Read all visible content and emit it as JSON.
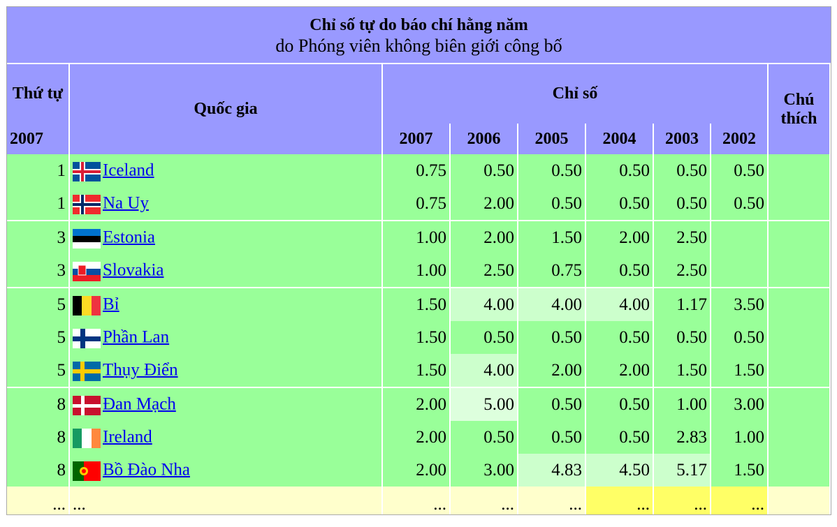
{
  "title": "Chỉ số tự do báo chí hằng năm",
  "subtitle": "do Phóng viên không biên giới công bố",
  "header": {
    "rank": "Thứ tự",
    "rank_year": "2007",
    "country": "Quốc gia",
    "index": "Chỉ số",
    "note": "Chú thích",
    "years": [
      "2007",
      "2006",
      "2005",
      "2004",
      "2003",
      "2002"
    ]
  },
  "rows": [
    {
      "rank": "1",
      "country": "Iceland",
      "scores": [
        "0.75",
        "0.50",
        "0.50",
        "0.50",
        "0.50",
        "0.50"
      ]
    },
    {
      "rank": "1",
      "country": "Na Uy",
      "scores": [
        "0.75",
        "2.00",
        "0.50",
        "0.50",
        "0.50",
        "0.50"
      ]
    },
    {
      "rank": "3",
      "country": "Estonia",
      "scores": [
        "1.00",
        "2.00",
        "1.50",
        "2.00",
        "2.50",
        ""
      ]
    },
    {
      "rank": "3",
      "country": "Slovakia",
      "scores": [
        "1.00",
        "2.50",
        "0.75",
        "0.50",
        "2.50",
        ""
      ]
    },
    {
      "rank": "5",
      "country": "Bỉ",
      "scores": [
        "1.50",
        "4.00",
        "4.00",
        "4.00",
        "1.17",
        "3.50"
      ]
    },
    {
      "rank": "5",
      "country": "Phần Lan",
      "scores": [
        "1.50",
        "0.50",
        "0.50",
        "0.50",
        "0.50",
        "0.50"
      ]
    },
    {
      "rank": "5",
      "country": "Thụy Điển",
      "scores": [
        "1.50",
        "4.00",
        "2.00",
        "2.00",
        "1.50",
        "1.50"
      ]
    },
    {
      "rank": "8",
      "country": "Đan Mạch",
      "scores": [
        "2.00",
        "5.00",
        "0.50",
        "0.50",
        "1.00",
        "3.00"
      ]
    },
    {
      "rank": "8",
      "country": "Ireland",
      "scores": [
        "2.00",
        "0.50",
        "0.50",
        "0.50",
        "2.83",
        "1.00"
      ]
    },
    {
      "rank": "8",
      "country": "Bồ Đào Nha",
      "scores": [
        "2.00",
        "3.00",
        "4.83",
        "4.50",
        "5.17",
        "1.50"
      ]
    }
  ],
  "more": {
    "rank": "...",
    "country": "...",
    "scores": [
      "...",
      "...",
      "...",
      "...",
      "...",
      "..."
    ]
  }
}
